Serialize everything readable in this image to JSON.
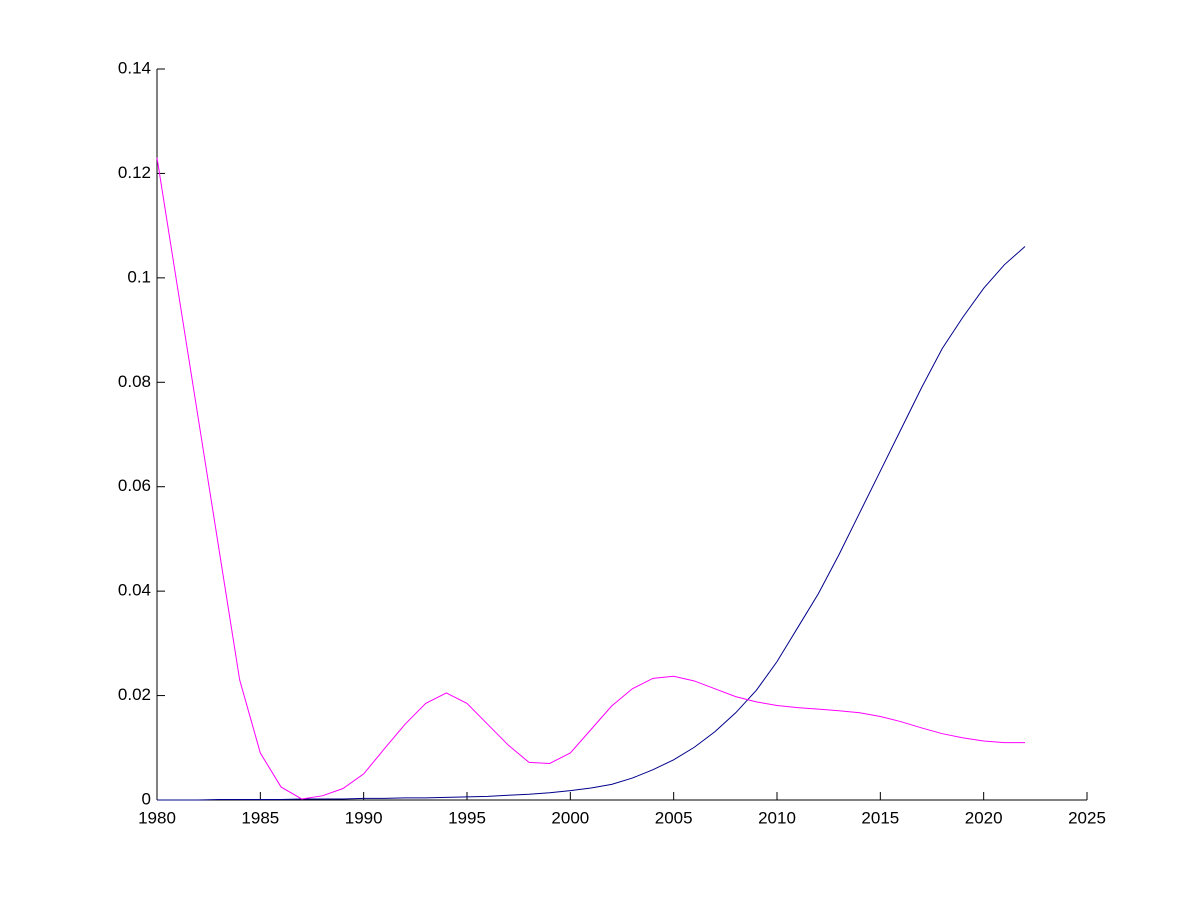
{
  "chart_data": {
    "type": "line",
    "x": [
      1980,
      1981,
      1982,
      1983,
      1984,
      1985,
      1986,
      1987,
      1988,
      1989,
      1990,
      1991,
      1992,
      1993,
      1994,
      1995,
      1996,
      1997,
      1998,
      1999,
      2000,
      2001,
      2002,
      2003,
      2004,
      2005,
      2006,
      2007,
      2008,
      2009,
      2010,
      2011,
      2012,
      2013,
      2014,
      2015,
      2016,
      2017,
      2018,
      2019,
      2020,
      2021,
      2022
    ],
    "series": [
      {
        "color": "#00008b",
        "values": [
          0,
          0,
          0,
          0.0001,
          0.0001,
          0.0001,
          0.0001,
          0.0002,
          0.0002,
          0.0002,
          0.0003,
          0.0003,
          0.0004,
          0.0004,
          0.0005,
          0.0006,
          0.0007,
          0.0009,
          0.0011,
          0.0014,
          0.0018,
          0.0023,
          0.003,
          0.0042,
          0.0058,
          0.0077,
          0.0101,
          0.0131,
          0.0167,
          0.021,
          0.0265,
          0.033,
          0.0395,
          0.047,
          0.055,
          0.063,
          0.071,
          0.079,
          0.0865,
          0.0925,
          0.098,
          0.1025,
          0.106
        ]
      },
      {
        "color": "#ff00ff",
        "values": [
          0.123,
          0.098,
          0.073,
          0.048,
          0.023,
          0.009,
          0.0025,
          0.0002,
          0.0008,
          0.0022,
          0.005,
          0.0098,
          0.0145,
          0.0185,
          0.0205,
          0.0185,
          0.0145,
          0.0105,
          0.0072,
          0.007,
          0.009,
          0.0135,
          0.018,
          0.0213,
          0.0233,
          0.0237,
          0.0228,
          0.0213,
          0.0198,
          0.0188,
          0.0181,
          0.0177,
          0.0174,
          0.0171,
          0.0167,
          0.016,
          0.015,
          0.0138,
          0.0127,
          0.0119,
          0.0113,
          0.011,
          0.011
        ]
      }
    ],
    "xlim": [
      1980,
      2025
    ],
    "xticks": [
      1980,
      1985,
      1990,
      1995,
      2000,
      2005,
      2010,
      2015,
      2020,
      2025
    ],
    "ylim": [
      0,
      0.14
    ],
    "yticks": [
      0,
      0.02,
      0.04,
      0.06,
      0.08,
      0.1,
      0.12,
      0.14
    ]
  }
}
